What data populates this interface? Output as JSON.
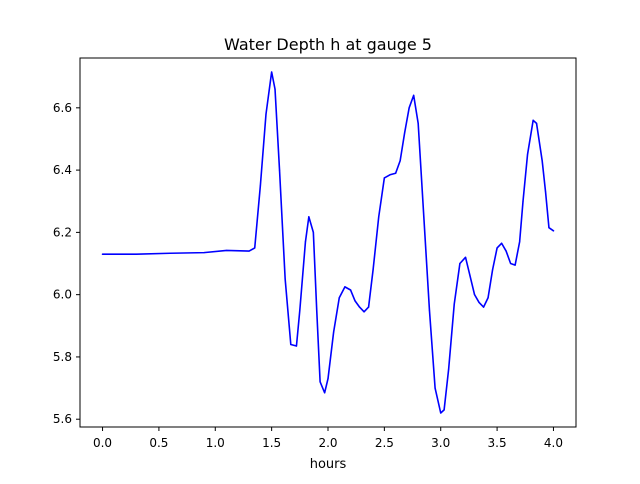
{
  "chart_data": {
    "type": "line",
    "title": "Water Depth h at gauge 5",
    "xlabel": "hours",
    "ylabel": "",
    "xlim": [
      -0.2,
      4.2
    ],
    "ylim": [
      5.575,
      6.76
    ],
    "xticks": [
      0.0,
      0.5,
      1.0,
      1.5,
      2.0,
      2.5,
      3.0,
      3.5,
      4.0
    ],
    "xtick_labels": [
      "0.0",
      "0.5",
      "1.0",
      "1.5",
      "2.0",
      "2.5",
      "3.0",
      "3.5",
      "4.0"
    ],
    "yticks": [
      5.6,
      5.8,
      6.0,
      6.2,
      6.4,
      6.6
    ],
    "ytick_labels": [
      "5.6",
      "5.8",
      "6.0",
      "6.2",
      "6.4",
      "6.6"
    ],
    "grid": false,
    "series": [
      {
        "color": "#0000ff",
        "x": [
          0.0,
          0.3,
          0.6,
          0.9,
          1.1,
          1.3,
          1.35,
          1.4,
          1.45,
          1.5,
          1.53,
          1.57,
          1.62,
          1.67,
          1.72,
          1.75,
          1.8,
          1.83,
          1.87,
          1.9,
          1.93,
          1.97,
          2.0,
          2.05,
          2.1,
          2.15,
          2.2,
          2.24,
          2.28,
          2.32,
          2.36,
          2.4,
          2.45,
          2.5,
          2.55,
          2.6,
          2.64,
          2.68,
          2.72,
          2.76,
          2.8,
          2.85,
          2.9,
          2.95,
          3.0,
          3.03,
          3.07,
          3.12,
          3.17,
          3.22,
          3.26,
          3.3,
          3.34,
          3.38,
          3.42,
          3.46,
          3.5,
          3.54,
          3.58,
          3.62,
          3.66,
          3.7,
          3.73,
          3.77,
          3.82,
          3.85,
          3.9,
          3.93,
          3.96,
          4.0
        ],
        "y": [
          6.13,
          6.13,
          6.133,
          6.135,
          6.142,
          6.14,
          6.15,
          6.35,
          6.58,
          6.715,
          6.66,
          6.4,
          6.05,
          5.84,
          5.835,
          5.95,
          6.17,
          6.25,
          6.2,
          5.95,
          5.72,
          5.685,
          5.73,
          5.88,
          5.99,
          6.025,
          6.015,
          5.98,
          5.96,
          5.945,
          5.96,
          6.08,
          6.25,
          6.375,
          6.385,
          6.39,
          6.43,
          6.52,
          6.6,
          6.64,
          6.55,
          6.25,
          5.95,
          5.7,
          5.62,
          5.63,
          5.76,
          5.97,
          6.1,
          6.12,
          6.06,
          6.0,
          5.975,
          5.96,
          5.99,
          6.08,
          6.15,
          6.165,
          6.14,
          6.1,
          6.095,
          6.17,
          6.3,
          6.45,
          6.56,
          6.55,
          6.43,
          6.33,
          6.215,
          6.205
        ]
      }
    ]
  }
}
